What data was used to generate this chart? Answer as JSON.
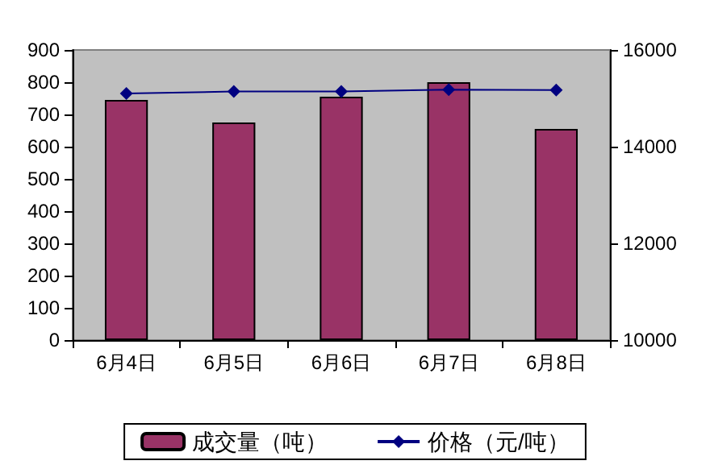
{
  "chart_data": {
    "type": "bar",
    "categories": [
      "6月4日",
      "6月5日",
      "6月6日",
      "6月7日",
      "6月8日"
    ],
    "series": [
      {
        "name": "成交量（吨）",
        "color": "#993366",
        "values": [
          745,
          675,
          755,
          800,
          655
        ]
      },
      {
        "name": "价格（元/吨）",
        "type": "line",
        "axis": "y2",
        "color": "#000080",
        "values": [
          15100,
          15140,
          15140,
          15180,
          15170
        ]
      }
    ],
    "ylim": [
      0,
      900
    ],
    "yticks": [
      0,
      100,
      200,
      300,
      400,
      500,
      600,
      700,
      800,
      900
    ],
    "y2lim": [
      10000,
      16000
    ],
    "y2ticks": [
      10000,
      12000,
      14000,
      16000
    ],
    "grid": false,
    "legend": "bottom",
    "marker": "diamond"
  }
}
